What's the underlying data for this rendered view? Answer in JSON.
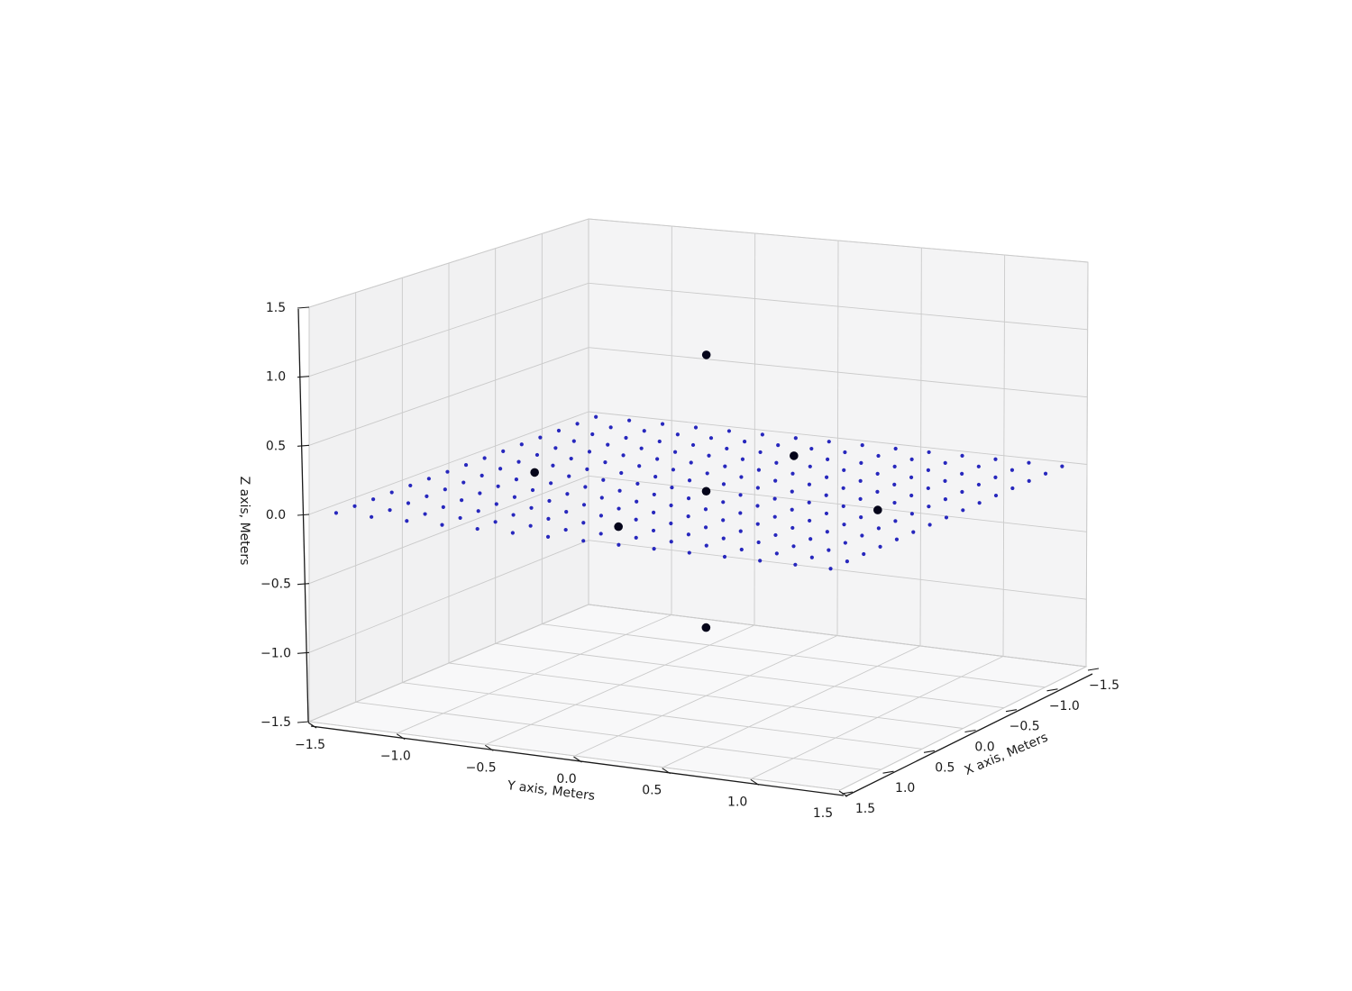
{
  "figure": {
    "background": "#ffffff"
  },
  "chart_data": {
    "type": "scatter",
    "projection": "3d",
    "title": "",
    "axes": {
      "x": {
        "label": "X axis, Meters",
        "range": [
          -1.5,
          1.5
        ],
        "ticks": [
          1.5,
          1.0,
          0.5,
          0.0,
          -0.5,
          -1.0,
          -1.5
        ]
      },
      "y": {
        "label": "Y axis, Meters",
        "range": [
          -1.5,
          1.5
        ],
        "ticks": [
          -1.5,
          -1.0,
          -0.5,
          0.0,
          0.5,
          1.0,
          1.5
        ]
      },
      "z": {
        "label": "Z axis, Meters",
        "range": [
          -1.5,
          1.5
        ],
        "ticks": [
          -1.5,
          -1.0,
          -0.5,
          0.0,
          0.5,
          1.0,
          1.5
        ]
      },
      "grid": true
    },
    "series": [
      {
        "id": "fitted-plane-grid",
        "marker": "point",
        "color": "#2727bd",
        "radius": 2.1,
        "grid": {
          "x_min": -1.4,
          "x_max": 1.4,
          "nx": 15,
          "y_min": -1.4,
          "y_max": 1.4,
          "ny": 15,
          "z": 0.0
        }
      },
      {
        "id": "landmark-points",
        "marker": "circle",
        "color": "#05051a",
        "radius": 4.8,
        "points": [
          [
            0.0,
            0.0,
            1.0
          ],
          [
            0.0,
            0.0,
            0.0
          ],
          [
            0.0,
            0.0,
            -1.0
          ],
          [
            1.0,
            0.0,
            0.0
          ],
          [
            -1.0,
            0.0,
            0.0
          ],
          [
            0.0,
            1.0,
            0.0
          ],
          [
            0.0,
            -1.0,
            0.0
          ]
        ]
      }
    ],
    "colors": {
      "pane_left": "#f1f1f2",
      "pane_right": "#f4f4f5",
      "pane_floor": "#f8f8f9",
      "grid_line": "#cacaca",
      "pane_edge": "#d2d2d2",
      "spine": "#1a1a1a",
      "tick_text": "#1a1a1a",
      "plane_dot": "#2727bd",
      "landmark": "#05051a"
    }
  }
}
